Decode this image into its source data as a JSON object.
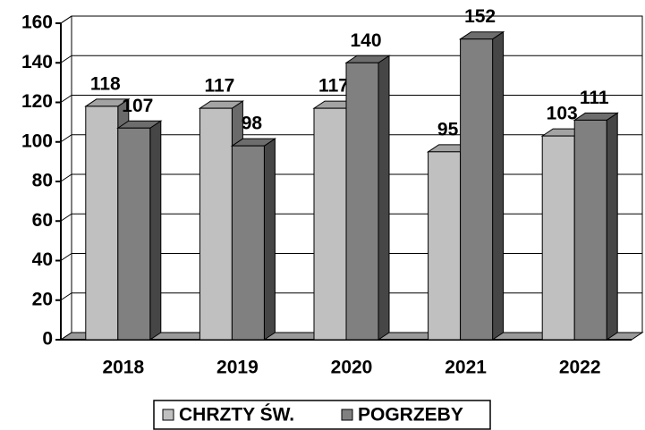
{
  "chart_data": {
    "type": "bar3d",
    "categories": [
      "2018",
      "2019",
      "2020",
      "2021",
      "2022"
    ],
    "series": [
      {
        "name": "CHRZTY ŚW.",
        "color": "#c0c0c0",
        "values": [
          118,
          117,
          117,
          95,
          103
        ]
      },
      {
        "name": "POGRZEBY",
        "color": "#808080",
        "values": [
          107,
          98,
          140,
          152,
          111
        ]
      }
    ],
    "ylim": [
      0,
      160
    ],
    "yticks": [
      0,
      20,
      40,
      60,
      80,
      100,
      120,
      140,
      160
    ],
    "grid": true
  }
}
